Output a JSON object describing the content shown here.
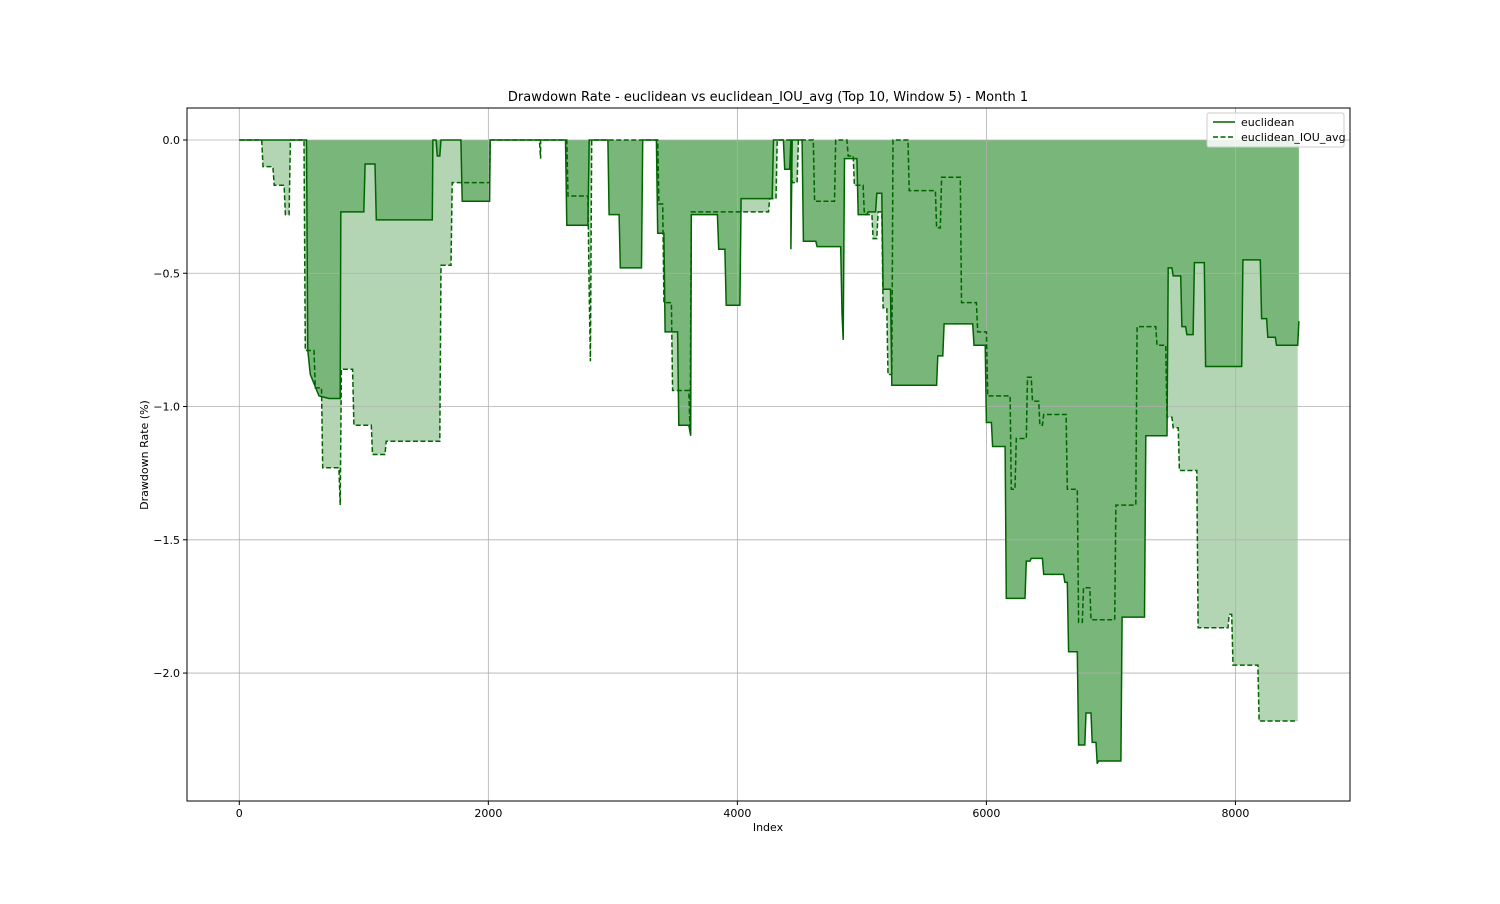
{
  "chart_data": {
    "type": "line",
    "title": "Drawdown Rate - euclidean vs euclidean_IOU_avg (Top 10, Window 5) - Month 1",
    "xlabel": "Index",
    "ylabel": "Drawdown Rate (%)",
    "xlim": [
      -420,
      8920
    ],
    "ylim": [
      -2.48,
      0.12
    ],
    "x_ticks": [
      0,
      2000,
      4000,
      6000,
      8000
    ],
    "x_tick_labels": [
      "0",
      "2000",
      "4000",
      "6000",
      "8000"
    ],
    "y_ticks": [
      0.0,
      -0.5,
      -1.0,
      -1.5,
      -2.0
    ],
    "y_tick_labels": [
      "0.0",
      "−0.5",
      "−1.0",
      "−1.5",
      "−2.0"
    ],
    "grid": true,
    "legend_position": "top-right",
    "colors": {
      "line": "#006400",
      "fill_dark": "#79b679",
      "fill_light": "#b4d5b4"
    },
    "series": [
      {
        "name": "euclidean",
        "style": "solid",
        "fill": "dark",
        "points": [
          [
            0,
            0
          ],
          [
            540,
            0
          ],
          [
            550,
            -0.79
          ],
          [
            570,
            -0.88
          ],
          [
            640,
            -0.96
          ],
          [
            720,
            -0.97
          ],
          [
            810,
            -0.97
          ],
          [
            815,
            -0.27
          ],
          [
            1000,
            -0.27
          ],
          [
            1010,
            -0.09
          ],
          [
            1090,
            -0.09
          ],
          [
            1100,
            -0.3
          ],
          [
            1550,
            -0.3
          ],
          [
            1555,
            0
          ],
          [
            1580,
            0
          ],
          [
            1590,
            -0.06
          ],
          [
            1610,
            -0.06
          ],
          [
            1620,
            0
          ],
          [
            1780,
            0
          ],
          [
            1790,
            -0.23
          ],
          [
            2010,
            -0.23
          ],
          [
            2015,
            0
          ],
          [
            2620,
            0
          ],
          [
            2630,
            -0.32
          ],
          [
            2800,
            -0.32
          ],
          [
            2810,
            0
          ],
          [
            2960,
            0
          ],
          [
            2970,
            -0.28
          ],
          [
            3050,
            -0.28
          ],
          [
            3060,
            -0.48
          ],
          [
            3230,
            -0.48
          ],
          [
            3240,
            0
          ],
          [
            3350,
            0
          ],
          [
            3360,
            -0.35
          ],
          [
            3410,
            -0.35
          ],
          [
            3420,
            -0.72
          ],
          [
            3520,
            -0.72
          ],
          [
            3530,
            -1.07
          ],
          [
            3610,
            -1.07
          ],
          [
            3625,
            -1.11
          ],
          [
            3630,
            -0.28
          ],
          [
            3840,
            -0.28
          ],
          [
            3850,
            -0.41
          ],
          [
            3900,
            -0.41
          ],
          [
            3910,
            -0.62
          ],
          [
            4020,
            -0.62
          ],
          [
            4030,
            -0.22
          ],
          [
            4280,
            -0.22
          ],
          [
            4290,
            0
          ],
          [
            4370,
            0
          ],
          [
            4380,
            -0.11
          ],
          [
            4420,
            -0.11
          ],
          [
            4430,
            0
          ],
          [
            4430,
            -0.41
          ],
          [
            4440,
            0
          ],
          [
            4520,
            0
          ],
          [
            4530,
            -0.38
          ],
          [
            4630,
            -0.38
          ],
          [
            4640,
            -0.4
          ],
          [
            4830,
            -0.4
          ],
          [
            4840,
            -0.65
          ],
          [
            4850,
            -0.75
          ],
          [
            4860,
            -0.07
          ],
          [
            4960,
            -0.07
          ],
          [
            4970,
            -0.28
          ],
          [
            5040,
            -0.28
          ],
          [
            5050,
            -0.27
          ],
          [
            5110,
            -0.27
          ],
          [
            5120,
            -0.2
          ],
          [
            5160,
            -0.2
          ],
          [
            5170,
            -0.56
          ],
          [
            5230,
            -0.56
          ],
          [
            5240,
            -0.92
          ],
          [
            5600,
            -0.92
          ],
          [
            5610,
            -0.81
          ],
          [
            5650,
            -0.81
          ],
          [
            5660,
            -0.69
          ],
          [
            5890,
            -0.69
          ],
          [
            5900,
            -0.77
          ],
          [
            5990,
            -0.77
          ],
          [
            6000,
            -1.06
          ],
          [
            6040,
            -1.06
          ],
          [
            6050,
            -1.15
          ],
          [
            6150,
            -1.15
          ],
          [
            6160,
            -1.72
          ],
          [
            6310,
            -1.72
          ],
          [
            6320,
            -1.58
          ],
          [
            6350,
            -1.58
          ],
          [
            6360,
            -1.57
          ],
          [
            6450,
            -1.57
          ],
          [
            6460,
            -1.63
          ],
          [
            6620,
            -1.63
          ],
          [
            6630,
            -1.66
          ],
          [
            6650,
            -1.66
          ],
          [
            6660,
            -1.92
          ],
          [
            6730,
            -1.92
          ],
          [
            6740,
            -2.27
          ],
          [
            6790,
            -2.27
          ],
          [
            6800,
            -2.15
          ],
          [
            6840,
            -2.15
          ],
          [
            6850,
            -2.26
          ],
          [
            6880,
            -2.26
          ],
          [
            6890,
            -2.34
          ],
          [
            6900,
            -2.33
          ],
          [
            7080,
            -2.33
          ],
          [
            7090,
            -1.79
          ],
          [
            7270,
            -1.79
          ],
          [
            7280,
            -1.11
          ],
          [
            7450,
            -1.11
          ],
          [
            7460,
            -0.48
          ],
          [
            7490,
            -0.48
          ],
          [
            7500,
            -0.51
          ],
          [
            7560,
            -0.51
          ],
          [
            7570,
            -0.7
          ],
          [
            7600,
            -0.7
          ],
          [
            7610,
            -0.73
          ],
          [
            7660,
            -0.73
          ],
          [
            7670,
            -0.46
          ],
          [
            7750,
            -0.46
          ],
          [
            7760,
            -0.85
          ],
          [
            8050,
            -0.85
          ],
          [
            8060,
            -0.45
          ],
          [
            8200,
            -0.45
          ],
          [
            8210,
            -0.67
          ],
          [
            8250,
            -0.67
          ],
          [
            8260,
            -0.74
          ],
          [
            8320,
            -0.74
          ],
          [
            8330,
            -0.77
          ],
          [
            8500,
            -0.77
          ],
          [
            8510,
            -0.68
          ]
        ]
      },
      {
        "name": "euclidean_IOU_avg",
        "style": "dashed",
        "fill": "light",
        "points": [
          [
            0,
            0
          ],
          [
            180,
            0
          ],
          [
            190,
            -0.1
          ],
          [
            270,
            -0.1
          ],
          [
            280,
            -0.17
          ],
          [
            360,
            -0.17
          ],
          [
            370,
            -0.28
          ],
          [
            400,
            -0.28
          ],
          [
            410,
            0
          ],
          [
            520,
            0
          ],
          [
            530,
            -0.79
          ],
          [
            600,
            -0.79
          ],
          [
            610,
            -0.93
          ],
          [
            660,
            -0.93
          ],
          [
            670,
            -1.23
          ],
          [
            800,
            -1.23
          ],
          [
            810,
            -1.37
          ],
          [
            820,
            -0.86
          ],
          [
            910,
            -0.86
          ],
          [
            920,
            -1.07
          ],
          [
            1060,
            -1.07
          ],
          [
            1070,
            -1.18
          ],
          [
            1170,
            -1.18
          ],
          [
            1180,
            -1.13
          ],
          [
            1610,
            -1.13
          ],
          [
            1620,
            -0.47
          ],
          [
            1700,
            -0.47
          ],
          [
            1710,
            -0.16
          ],
          [
            2010,
            -0.16
          ],
          [
            2015,
            0
          ],
          [
            2410,
            0
          ],
          [
            2420,
            -0.07
          ],
          [
            2420,
            0
          ],
          [
            2630,
            0
          ],
          [
            2640,
            -0.21
          ],
          [
            2800,
            -0.21
          ],
          [
            2810,
            -0.57
          ],
          [
            2820,
            -0.83
          ],
          [
            2830,
            0
          ],
          [
            3360,
            0
          ],
          [
            3370,
            -0.24
          ],
          [
            3400,
            -0.24
          ],
          [
            3410,
            -0.61
          ],
          [
            3470,
            -0.61
          ],
          [
            3480,
            -0.94
          ],
          [
            3610,
            -0.94
          ],
          [
            3620,
            -1.09
          ],
          [
            3630,
            -0.27
          ],
          [
            4250,
            -0.27
          ],
          [
            4260,
            -0.22
          ],
          [
            4310,
            -0.22
          ],
          [
            4320,
            0
          ],
          [
            4430,
            0
          ],
          [
            4440,
            -0.16
          ],
          [
            4480,
            -0.16
          ],
          [
            4490,
            0
          ],
          [
            4610,
            0
          ],
          [
            4620,
            -0.23
          ],
          [
            4780,
            -0.23
          ],
          [
            4790,
            0
          ],
          [
            4880,
            0
          ],
          [
            4890,
            -0.06
          ],
          [
            4930,
            -0.06
          ],
          [
            4940,
            -0.17
          ],
          [
            5010,
            -0.17
          ],
          [
            5020,
            -0.28
          ],
          [
            5080,
            -0.28
          ],
          [
            5090,
            -0.37
          ],
          [
            5120,
            -0.37
          ],
          [
            5130,
            -0.27
          ],
          [
            5160,
            -0.27
          ],
          [
            5170,
            -0.63
          ],
          [
            5200,
            -0.63
          ],
          [
            5210,
            -0.88
          ],
          [
            5240,
            -0.88
          ],
          [
            5250,
            0
          ],
          [
            5370,
            0
          ],
          [
            5380,
            -0.19
          ],
          [
            5590,
            -0.19
          ],
          [
            5600,
            -0.33
          ],
          [
            5630,
            -0.33
          ],
          [
            5640,
            -0.14
          ],
          [
            5790,
            -0.14
          ],
          [
            5800,
            -0.61
          ],
          [
            5920,
            -0.61
          ],
          [
            5930,
            -0.72
          ],
          [
            6000,
            -0.72
          ],
          [
            6010,
            -0.96
          ],
          [
            6190,
            -0.96
          ],
          [
            6200,
            -1.31
          ],
          [
            6230,
            -1.31
          ],
          [
            6240,
            -1.12
          ],
          [
            6320,
            -1.12
          ],
          [
            6330,
            -0.89
          ],
          [
            6360,
            -0.89
          ],
          [
            6370,
            -0.98
          ],
          [
            6420,
            -0.98
          ],
          [
            6430,
            -1.07
          ],
          [
            6450,
            -1.07
          ],
          [
            6460,
            -1.03
          ],
          [
            6640,
            -1.03
          ],
          [
            6650,
            -1.31
          ],
          [
            6730,
            -1.31
          ],
          [
            6740,
            -1.81
          ],
          [
            6770,
            -1.81
          ],
          [
            6780,
            -1.68
          ],
          [
            6830,
            -1.68
          ],
          [
            6840,
            -1.8
          ],
          [
            7030,
            -1.8
          ],
          [
            7040,
            -1.37
          ],
          [
            7200,
            -1.37
          ],
          [
            7210,
            -0.7
          ],
          [
            7360,
            -0.7
          ],
          [
            7370,
            -0.77
          ],
          [
            7440,
            -0.77
          ],
          [
            7450,
            -1.04
          ],
          [
            7490,
            -1.04
          ],
          [
            7500,
            -1.08
          ],
          [
            7540,
            -1.08
          ],
          [
            7550,
            -1.24
          ],
          [
            7690,
            -1.24
          ],
          [
            7700,
            -1.83
          ],
          [
            7940,
            -1.83
          ],
          [
            7950,
            -1.78
          ],
          [
            7970,
            -1.78
          ],
          [
            7980,
            -1.97
          ],
          [
            8180,
            -1.97
          ],
          [
            8190,
            -2.18
          ],
          [
            8500,
            -2.18
          ]
        ]
      }
    ]
  }
}
